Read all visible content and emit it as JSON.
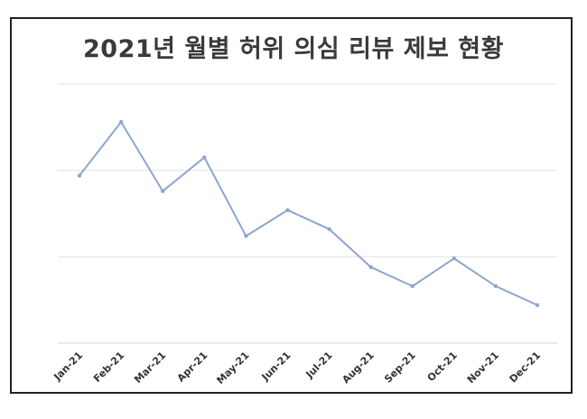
{
  "chart_data": {
    "type": "line",
    "title": "2021년 월별 허위 의심 리뷰 제보 현황",
    "categories": [
      "Jan-21",
      "Feb-21",
      "Mar-21",
      "Apr-21",
      "May-21",
      "Jun-21",
      "Jul-21",
      "Aug-21",
      "Sep-21",
      "Oct-21",
      "Nov-21",
      "Dec-21"
    ],
    "series": [
      {
        "values": [
          1.94,
          2.56,
          1.76,
          2.15,
          1.24,
          1.54,
          1.32,
          0.88,
          0.66,
          0.98,
          0.66,
          0.44
        ]
      }
    ],
    "ylim": [
      0,
      3
    ],
    "y_gridlines": [
      1,
      2,
      3
    ],
    "y_tick_labels_visible": false,
    "grid": true,
    "legend": "none",
    "line_color": "#8EA5CF",
    "grid_color": "#e3e3e3",
    "axis_color": "#d4d4d4",
    "tick_label_color": "#333333"
  }
}
